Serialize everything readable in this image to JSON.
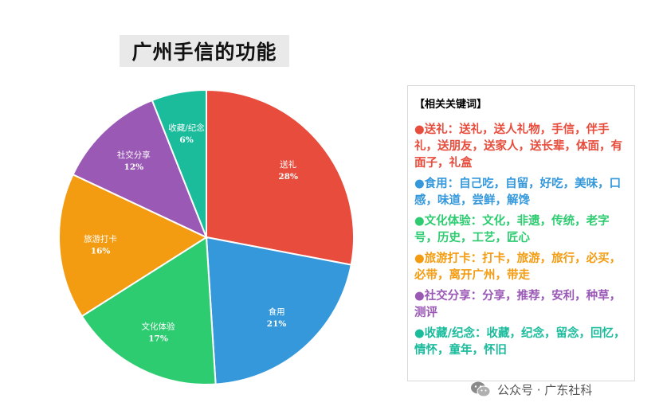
{
  "chart_data": {
    "type": "pie",
    "title": "广州手信的功能",
    "start_angle_deg": 0,
    "direction": "clockwise",
    "slices": [
      {
        "label": "送礼",
        "value": 28,
        "pct_label": "28%",
        "color": "#e74c3c"
      },
      {
        "label": "食用",
        "value": 21,
        "pct_label": "21%",
        "color": "#3498db"
      },
      {
        "label": "文化体验",
        "value": 17,
        "pct_label": "17%",
        "color": "#2ecc71"
      },
      {
        "label": "旅游打卡",
        "value": 16,
        "pct_label": "16%",
        "color": "#f39c12"
      },
      {
        "label": "社交分享",
        "value": 12,
        "pct_label": "12%",
        "color": "#9b59b6"
      },
      {
        "label": "收藏/纪念",
        "value": 6,
        "pct_label": "6%",
        "color": "#1abc9c"
      }
    ]
  },
  "keywords": {
    "header": "【相关关键词】",
    "items": [
      {
        "text": "●送礼：送礼，送人礼物，手信，伴手礼，送朋友，送家人，送长辈，体面，有面子，礼盒",
        "color": "#e74c3c"
      },
      {
        "text": "●食用：自己吃，自留，好吃，美味，口感，味道，尝鲜，解馋",
        "color": "#3498db"
      },
      {
        "text": "●文化体验：文化，非遗，传统，老字号，历史，工艺，匠心",
        "color": "#2ecc71"
      },
      {
        "text": "●旅游打卡：打卡，旅游，旅行，必买，必带，离开广州，带走",
        "color": "#f39c12"
      },
      {
        "text": "●社交分享：分享，推荐，安利，种草，测评",
        "color": "#9b59b6"
      },
      {
        "text": "●收藏/纪念：收藏，纪念，留念，回忆，情怀，童年，怀旧",
        "color": "#1abc9c"
      }
    ]
  },
  "watermark": {
    "text": "公众号 · 广东社科",
    "icon": "wechat-icon"
  }
}
